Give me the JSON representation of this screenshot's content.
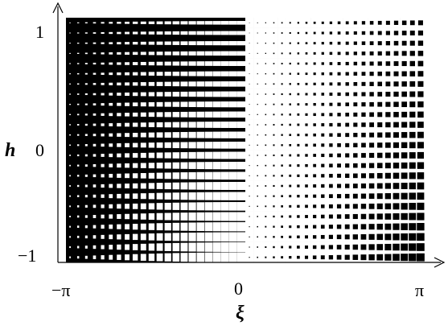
{
  "figure": {
    "x_axis": {
      "name": "ξ",
      "ticks": [
        "−π",
        "0",
        "π"
      ],
      "range": [
        -3.14159,
        3.14159
      ]
    },
    "y_axis": {
      "name": "h",
      "ticks": [
        "1",
        "0",
        "−1"
      ],
      "range": [
        -1,
        1
      ]
    },
    "pattern": {
      "description_free": true,
      "columns": 44,
      "rows": 24,
      "dark_color": "#000000",
      "light_color": "#ffffff"
    }
  }
}
